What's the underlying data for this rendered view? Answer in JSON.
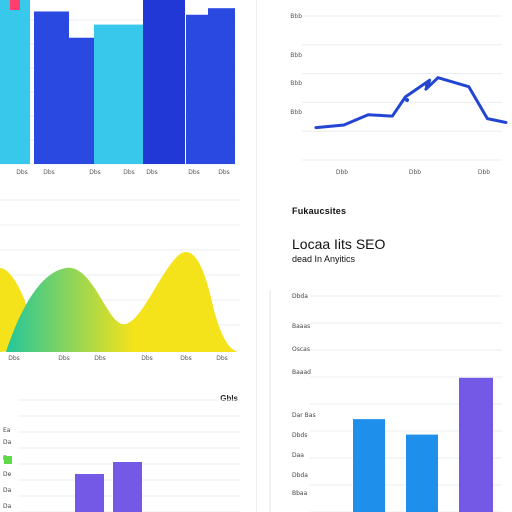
{
  "colors": {
    "cyan": "#37c8ec",
    "blue": "#2949e0",
    "royal": "#2238d6",
    "line_blue": "#2346d2",
    "green_teal": "#23c79a",
    "yellow": "#f4e21a",
    "violet": "#7458e6",
    "sky": "#1f8fec",
    "accent_pink": "#ff3d6e",
    "accent_green": "#5fd84a",
    "grid": "#e9ecf1"
  },
  "top_left_chart": {
    "x_ticks": [
      "Dbs",
      "Dbs",
      "Dbs",
      "Dbs",
      "Dbs",
      "Dbs",
      "Dbs"
    ]
  },
  "top_right_chart": {
    "y_ticks": [
      "Bbb",
      "Bbb",
      "Bbb",
      "Bbb"
    ],
    "x_ticks": [
      "Dbb",
      "Dbb",
      "Dbb"
    ]
  },
  "middle_left_chart": {
    "x_ticks": [
      "Dbs",
      "Dbs",
      "Dbs",
      "Dbs",
      "Dbs",
      "Dbs",
      "Dbs",
      "Dbs"
    ]
  },
  "right_panel": {
    "eyebrow": "Fukaucsites",
    "title": "Locaa Iits SEO",
    "subtitle": "dead In Anyitics",
    "y_ticks": [
      "Dbda",
      "Baaas",
      "Oscas",
      "Baaad",
      "Dar Bas",
      "Dbds",
      "Daa",
      "Dbda",
      "Bbaa"
    ]
  },
  "bottom_left_chart": {
    "label": "Gbls",
    "y_ticks": [
      "Ea",
      "Da",
      "Da",
      "De",
      "Da",
      "Da"
    ]
  },
  "chart_data": [
    {
      "type": "bar",
      "categories": [
        "1",
        "2",
        "3",
        "4",
        "5",
        "6",
        "7"
      ],
      "values": [
        100,
        93,
        77,
        85,
        100,
        91,
        95
      ],
      "ylim": [
        0,
        100
      ]
    },
    {
      "type": "line",
      "x": [
        0,
        1,
        2,
        3,
        4,
        5,
        6,
        7,
        8,
        9,
        10
      ],
      "values": [
        10,
        14,
        30,
        28,
        58,
        84,
        70,
        88,
        74,
        24,
        18
      ],
      "ylim": [
        0,
        100
      ]
    },
    {
      "type": "area",
      "x": [
        0,
        1,
        2,
        3,
        4,
        5,
        6
      ],
      "series": [
        {
          "values": [
            100,
            55,
            78,
            60,
            100,
            40,
            10
          ]
        },
        {
          "values": [
            0,
            85,
            72,
            35,
            40,
            0,
            0
          ]
        }
      ],
      "ylim": [
        0,
        100
      ]
    },
    {
      "type": "bar",
      "categories": [
        "1",
        "2",
        "3"
      ],
      "values": [
        54,
        45,
        78
      ],
      "ylim": [
        0,
        100
      ]
    },
    {
      "type": "bar",
      "categories": [
        "1",
        "2"
      ],
      "values": [
        38,
        50
      ],
      "ylim": [
        0,
        100
      ]
    }
  ]
}
